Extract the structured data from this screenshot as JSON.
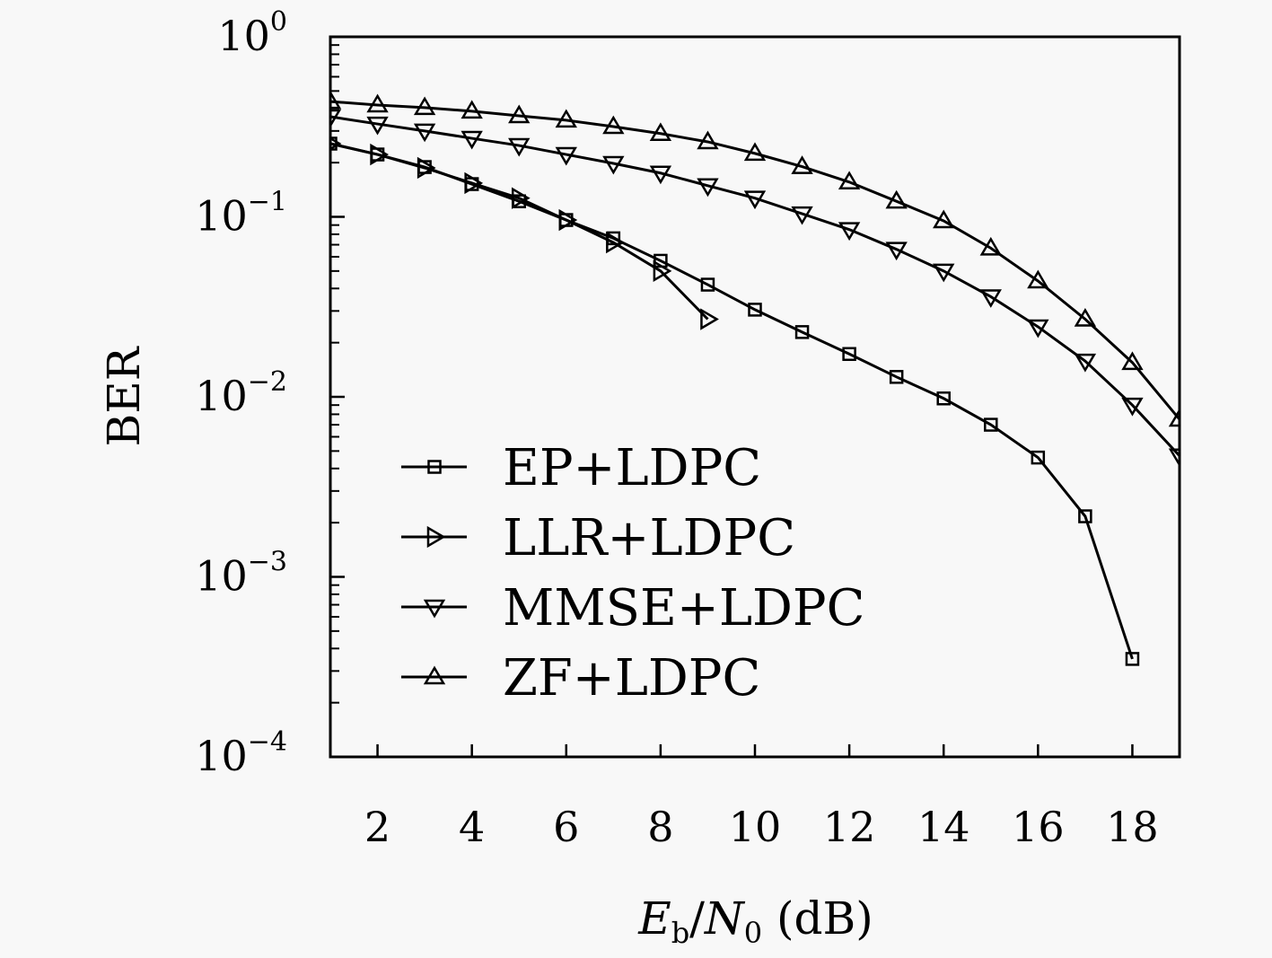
{
  "chart_data": {
    "type": "line",
    "title": "",
    "xlabel": "E_b/N_0 (dB)",
    "xlabel_parts": {
      "main1": "E",
      "sub1": "b",
      "slash": "/",
      "main2": "N",
      "sub2": "0",
      "unit": " (dB)"
    },
    "ylabel": "BER",
    "yscale": "log",
    "xlim": [
      1,
      19
    ],
    "ylim": [
      0.0001,
      1
    ],
    "x_ticks": [
      2,
      4,
      6,
      8,
      10,
      12,
      14,
      16,
      18
    ],
    "y_ticks": [
      {
        "base": "10",
        "exp": "0",
        "value": 1
      },
      {
        "base": "10",
        "exp": "−1",
        "value": 0.1
      },
      {
        "base": "10",
        "exp": "−2",
        "value": 0.01
      },
      {
        "base": "10",
        "exp": "−3",
        "value": 0.001
      },
      {
        "base": "10",
        "exp": "−4",
        "value": 0.0001
      }
    ],
    "grid": false,
    "legend_position": "lower left",
    "series": [
      {
        "name": "EP+LDPC",
        "marker": "square",
        "x": [
          1,
          2,
          3,
          4,
          5,
          6,
          7,
          8,
          9,
          10,
          11,
          12,
          13,
          14,
          15,
          16,
          17,
          18
        ],
        "values": [
          0.255,
          0.222,
          0.189,
          0.152,
          0.122,
          0.096,
          0.076,
          0.057,
          0.042,
          0.0305,
          0.0229,
          0.0173,
          0.0129,
          0.0098,
          0.007,
          0.0046,
          0.00217,
          0.00035
        ]
      },
      {
        "name": "LLR+LDPC",
        "marker": "triangle-right",
        "x": [
          1,
          2,
          3,
          4,
          5,
          6,
          7,
          8,
          9
        ],
        "values": [
          0.255,
          0.222,
          0.187,
          0.154,
          0.127,
          0.096,
          0.072,
          0.05,
          0.027
        ]
      },
      {
        "name": "MMSE+LDPC",
        "marker": "triangle-down",
        "x": [
          1,
          2,
          3,
          4,
          5,
          6,
          7,
          8,
          9,
          10,
          11,
          12,
          13,
          14,
          15,
          16,
          17,
          18,
          19
        ],
        "values": [
          0.36,
          0.328,
          0.3,
          0.273,
          0.249,
          0.222,
          0.198,
          0.175,
          0.149,
          0.127,
          0.104,
          0.085,
          0.066,
          0.05,
          0.036,
          0.0245,
          0.0158,
          0.009,
          0.0047
        ]
      },
      {
        "name": "ZF+LDPC",
        "marker": "triangle-up",
        "x": [
          1,
          2,
          3,
          4,
          5,
          6,
          7,
          8,
          9,
          10,
          11,
          12,
          13,
          14,
          15,
          16,
          17,
          18,
          19
        ],
        "values": [
          0.437,
          0.418,
          0.404,
          0.386,
          0.364,
          0.344,
          0.317,
          0.29,
          0.261,
          0.225,
          0.19,
          0.156,
          0.122,
          0.095,
          0.067,
          0.044,
          0.027,
          0.0155,
          0.0075
        ]
      }
    ]
  },
  "colors": {
    "background": "#f8f8f8",
    "line": "#000000"
  }
}
